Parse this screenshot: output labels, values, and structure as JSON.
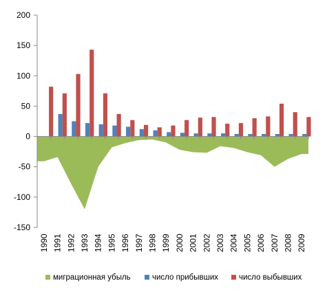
{
  "chart_data": {
    "type": "bar",
    "categories": [
      "1990",
      "1991",
      "1992",
      "1993",
      "1994",
      "1995",
      "1996",
      "1997",
      "1998",
      "1999",
      "2000",
      "2001",
      "2002",
      "2003",
      "2004",
      "2005",
      "2006",
      "2007",
      "2008",
      "2009"
    ],
    "ylim": [
      -150,
      200
    ],
    "yticks": [
      -150,
      -100,
      -50,
      0,
      50,
      100,
      150,
      200
    ],
    "grid": false,
    "legend_position": "bottom",
    "series": [
      {
        "name": "миграционная убыль",
        "type": "area",
        "color": "#9BBB59",
        "values": [
          -41,
          -34,
          -78,
          -120,
          -50,
          -18,
          -11,
          -6,
          -5,
          -10,
          -22,
          -26,
          -27,
          -16,
          -19,
          -26,
          -31,
          -50,
          -37,
          -29
        ]
      },
      {
        "name": "число прибывших",
        "type": "bar",
        "color": "#4F81BD",
        "values": [
          0,
          37,
          25,
          22,
          20,
          18,
          16,
          12,
          10,
          7,
          6,
          5,
          5,
          5,
          4,
          4,
          4,
          4,
          4,
          4
        ]
      },
      {
        "name": "число выбывших",
        "type": "bar",
        "color": "#C0504D",
        "values": [
          82,
          71,
          103,
          143,
          71,
          37,
          27,
          19,
          15,
          18,
          27,
          31,
          32,
          21,
          22,
          30,
          33,
          54,
          40,
          32
        ]
      }
    ]
  }
}
